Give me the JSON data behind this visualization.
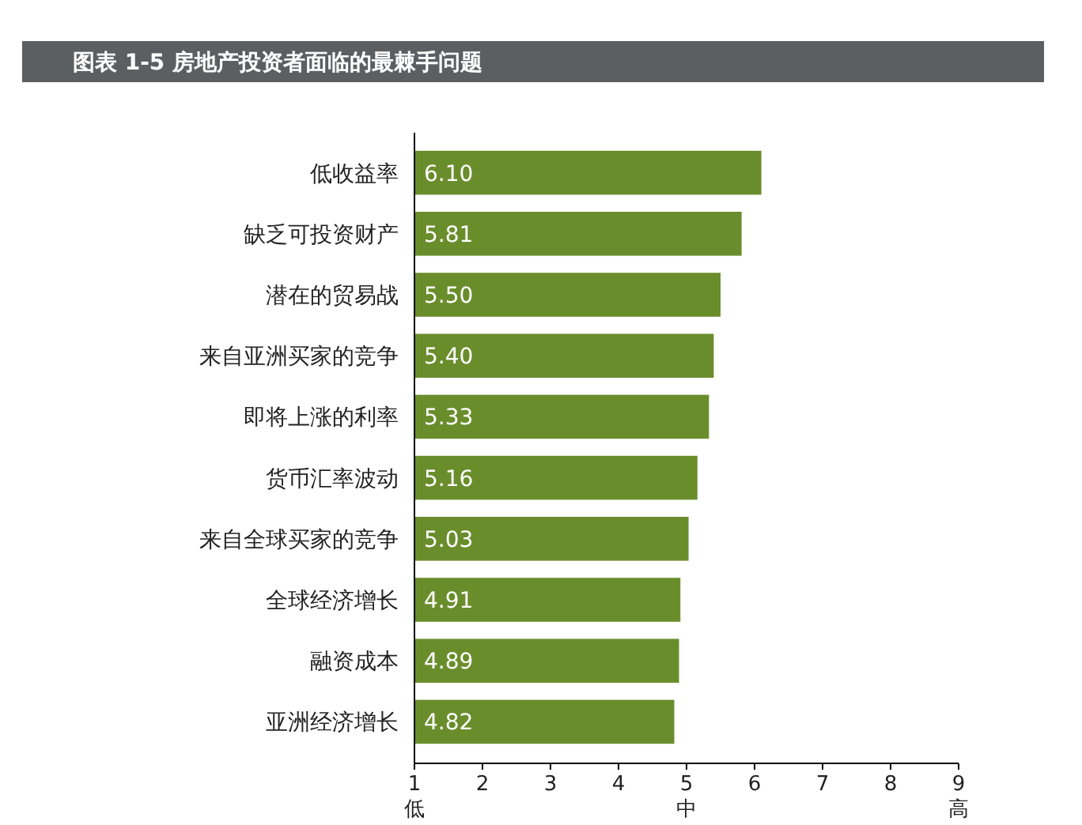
{
  "chart_data": {
    "type": "bar",
    "orientation": "horizontal",
    "title": "图表 1-5   房地产投资者面临的最棘手问题",
    "categories": [
      "低收益率",
      "缺乏可投资财产",
      "潜在的贸易战",
      "来自亚洲买家的竞争",
      "即将上涨的利率",
      "货币汇率波动",
      "来自全球买家的竞争",
      "全球经济增长",
      "融资成本",
      "亚洲经济增长"
    ],
    "values": [
      6.1,
      5.81,
      5.5,
      5.4,
      5.33,
      5.16,
      5.03,
      4.91,
      4.89,
      4.82
    ],
    "value_labels": [
      "6.10",
      "5.81",
      "5.50",
      "5.40",
      "5.33",
      "5.16",
      "5.03",
      "4.91",
      "4.89",
      "4.82"
    ],
    "color": "#6a8d2c",
    "xlim": [
      1,
      9
    ],
    "xticks": [
      {
        "value": 1,
        "label": "1\n低"
      },
      2,
      3,
      4,
      {
        "value": 5,
        "label": "5\n中"
      },
      6,
      7,
      8,
      {
        "value": 9,
        "label": "9\n高"
      }
    ],
    "grid": false
  }
}
